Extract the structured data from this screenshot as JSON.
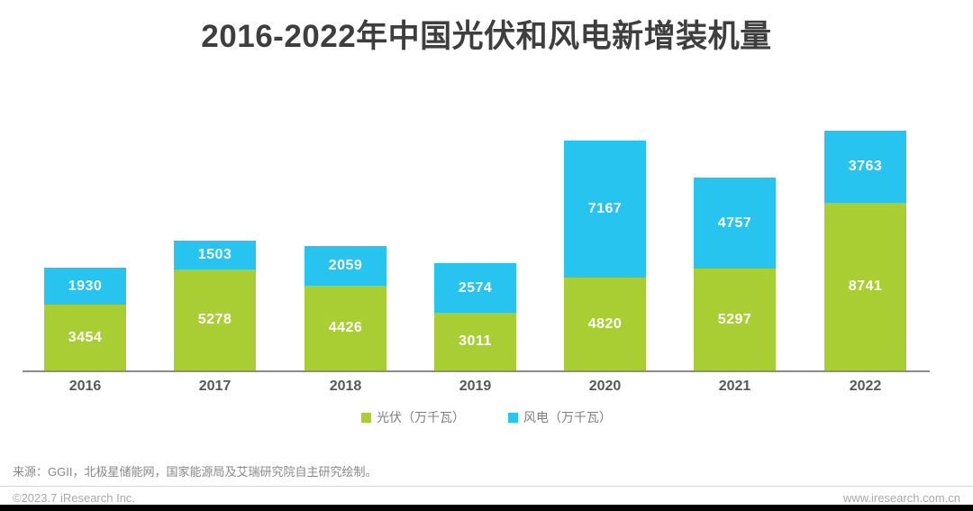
{
  "title": "2016-2022年中国光伏和风电新增装机量",
  "colors": {
    "pv_green": "#a9ce33",
    "wind_blue": "#26c4ee",
    "title_text": "#3e3e3e",
    "axis_line": "#8c8c8c",
    "x_label": "#595757",
    "bar_label": "#ffffff",
    "legend_text": "#7f7f7f",
    "source_text": "#878787",
    "footer_text": "#a8a8a8",
    "footer_bar": "#000000"
  },
  "chart_data": {
    "type": "bar",
    "stacked": true,
    "title": "2016-2022年中国光伏和风电新增装机量",
    "categories": [
      "2016",
      "2017",
      "2018",
      "2019",
      "2020",
      "2021",
      "2022"
    ],
    "series": [
      {
        "name": "光伏（万千瓦）",
        "color": "#a9ce33",
        "values": [
          3454,
          5278,
          4426,
          3011,
          4820,
          5297,
          8741
        ]
      },
      {
        "name": "风电（万千瓦）",
        "color": "#26c4ee",
        "values": [
          1930,
          1503,
          2059,
          2574,
          7167,
          4757,
          3763
        ]
      }
    ],
    "stack_order_bottom_to_top": [
      "光伏（万千瓦）",
      "风电（万千瓦）"
    ],
    "totals": [
      5384,
      6781,
      6485,
      5585,
      11987,
      10054,
      12504
    ],
    "xlabel": "",
    "ylabel": "",
    "unit": "万千瓦",
    "value_labels": "inside-white",
    "grid": false,
    "y_axis_shown": false,
    "legend_position": "bottom"
  },
  "legend": [
    {
      "label": "光伏（万千瓦）",
      "color": "#a9ce33"
    },
    {
      "label": "风电（万千瓦）",
      "color": "#26c4ee"
    }
  ],
  "source_note": "来源：GGII，北极星储能网，国家能源局及艾瑞研究院自主研究绘制。",
  "footer": {
    "left": "©2023.7 iResearch Inc.",
    "right": "www.iresearch.com.cn"
  }
}
